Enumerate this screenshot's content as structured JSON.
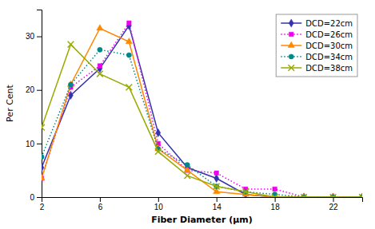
{
  "chart_data": {
    "type": "line",
    "xlabel": "Fiber Diameter (μm)",
    "ylabel": "Per Cent",
    "x": [
      2,
      4,
      6,
      8,
      10,
      12,
      14,
      16,
      18,
      20,
      22,
      24
    ],
    "series": [
      {
        "name": "DCD=22cm",
        "color": "#3333aa",
        "marker": "diamond",
        "line_style": "solid",
        "values": [
          5.5,
          19,
          24,
          32,
          12,
          5.5,
          3.5,
          0.5,
          0.0,
          0.0,
          0.0,
          0.0
        ]
      },
      {
        "name": "DCD=26cm",
        "color": "#ee00ee",
        "marker": "square",
        "line_style": "dotted",
        "values": [
          3.5,
          20.5,
          24.5,
          32.5,
          10,
          5,
          4.5,
          1.5,
          1.5,
          0.0,
          0.0,
          0.0
        ]
      },
      {
        "name": "DCD=30cm",
        "color": "#ff8800",
        "marker": "triangle",
        "line_style": "solid",
        "values": [
          3.5,
          21,
          31.5,
          29,
          9,
          5,
          1.0,
          0.5,
          0.0,
          0.0,
          0.0,
          0.0
        ]
      },
      {
        "name": "DCD=34cm",
        "color": "#008888",
        "marker": "circle",
        "line_style": "dotted",
        "values": [
          7.5,
          21,
          27.5,
          26.5,
          9,
          6,
          2.0,
          1.0,
          0.5,
          0.0,
          0.0,
          0.0
        ]
      },
      {
        "name": "DCD=38cm",
        "color": "#99aa00",
        "marker": "x",
        "line_style": "solid",
        "values": [
          13,
          28.5,
          23,
          20.5,
          8.5,
          4,
          2.0,
          1.0,
          0.0,
          0.0,
          0.0,
          0.0
        ]
      }
    ],
    "xlim": [
      2,
      24
    ],
    "ylim": [
      0,
      35
    ],
    "xticks": [
      2,
      6,
      10,
      14,
      18,
      22
    ],
    "yticks": [
      0,
      10,
      20,
      30
    ],
    "legend": "upper right"
  }
}
